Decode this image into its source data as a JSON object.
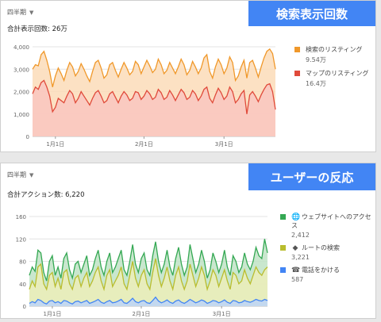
{
  "cards": [
    {
      "banner": "検索表示回数",
      "period_label": "四半期",
      "total_label": "合計表示回数: 26万",
      "icon": "chevron-down-icon"
    },
    {
      "banner": "ユーザーの反応",
      "period_label": "四半期",
      "total_label": "合計アクション数: 6,220",
      "icon": "chevron-down-icon"
    }
  ],
  "chart_data": [
    {
      "type": "area",
      "x_tick_labels": [
        "1月1日",
        "2月1日",
        "3月1日"
      ],
      "x_tick_positions": [
        8,
        39,
        67
      ],
      "ylim": [
        0,
        4000
      ],
      "y_ticks": [
        0,
        1000,
        2000,
        3000,
        4000
      ],
      "y_tick_labels": [
        "0",
        "1,000",
        "2,000",
        "3,000",
        "4,000"
      ],
      "grid": true,
      "legend_position": "right",
      "series": [
        {
          "name": "検索のリスティング",
          "total": "9.54万",
          "color": "#f0982a",
          "fill": "#fbdcb9",
          "values": [
            3000,
            3200,
            3150,
            3650,
            3800,
            3400,
            2900,
            2200,
            2700,
            3050,
            2800,
            2500,
            2950,
            3300,
            3100,
            2700,
            2900,
            3250,
            3000,
            2700,
            2450,
            2900,
            3300,
            3400,
            3050,
            2600,
            2750,
            3200,
            3300,
            2950,
            2650,
            3000,
            3300,
            3050,
            2750,
            2900,
            3350,
            3200,
            2800,
            3100,
            3400,
            3150,
            2850,
            3000,
            3450,
            3200,
            2800,
            2950,
            3300,
            3050,
            2800,
            3100,
            3450,
            3200,
            2750,
            2950,
            3350,
            3100,
            2800,
            3050,
            3500,
            3650,
            2900,
            2600,
            3100,
            3450,
            3200,
            2800,
            3050,
            3550,
            3300,
            2500,
            2700,
            3100,
            3400,
            2600,
            3300,
            3400,
            3050,
            2650,
            3100,
            3500,
            3800,
            3900,
            3700,
            3000
          ]
        },
        {
          "name": "マップのリスティング",
          "total": "16.4万",
          "color": "#e04a3a",
          "fill": "#f9c5bf",
          "values": [
            1900,
            2200,
            2100,
            2400,
            2500,
            2200,
            1800,
            1100,
            1300,
            1700,
            1600,
            1500,
            1800,
            2050,
            1900,
            1500,
            1700,
            2000,
            1800,
            1600,
            1400,
            1700,
            1950,
            2050,
            1800,
            1500,
            1600,
            1900,
            2000,
            1750,
            1500,
            1800,
            2000,
            1850,
            1600,
            1700,
            2000,
            1950,
            1650,
            1800,
            2050,
            1900,
            1650,
            1750,
            2100,
            1950,
            1650,
            1750,
            2050,
            1850,
            1600,
            1850,
            2100,
            1950,
            1650,
            1750,
            2050,
            1900,
            1600,
            1800,
            2100,
            2200,
            1700,
            1500,
            1850,
            2150,
            1950,
            1650,
            1800,
            2200,
            2000,
            1500,
            1650,
            1900,
            2050,
            1000,
            1850,
            2000,
            1800,
            1550,
            1850,
            2100,
            2300,
            2350,
            2000,
            1200
          ]
        }
      ]
    },
    {
      "type": "area",
      "x_tick_labels": [
        "1月1日",
        "2月1日",
        "3月1日"
      ],
      "x_tick_positions": [
        8,
        39,
        67
      ],
      "ylim": [
        0,
        160
      ],
      "y_ticks": [
        0,
        40,
        80,
        120,
        160
      ],
      "y_tick_labels": [
        "0",
        "40",
        "80",
        "120",
        "160"
      ],
      "grid": true,
      "legend_position": "right",
      "series": [
        {
          "name": "ウェブサイトへのアクセス",
          "total": "2,412",
          "color": "#34a853",
          "fill": "#bfe3c6",
          "icon": "globe-icon",
          "values": [
            55,
            70,
            62,
            100,
            95,
            60,
            45,
            80,
            90,
            55,
            70,
            50,
            85,
            95,
            65,
            50,
            75,
            80,
            60,
            75,
            90,
            55,
            65,
            85,
            100,
            70,
            55,
            80,
            95,
            60,
            70,
            85,
            100,
            65,
            55,
            80,
            110,
            75,
            60,
            85,
            95,
            65,
            55,
            90,
            115,
            80,
            60,
            75,
            100,
            70,
            55,
            85,
            105,
            75,
            55,
            70,
            110,
            85,
            60,
            75,
            100,
            80,
            50,
            65,
            95,
            80,
            60,
            75,
            100,
            70,
            55,
            90,
            80,
            60,
            70,
            95,
            75,
            65,
            80,
            105,
            90,
            85,
            120,
            95
          ]
        },
        {
          "name": "ルートの検索",
          "total": "3,221",
          "color": "#b9bd2e",
          "fill": "#ecedb8",
          "icon": "directions-icon",
          "values": [
            30,
            45,
            35,
            70,
            75,
            40,
            30,
            55,
            60,
            35,
            50,
            30,
            60,
            65,
            40,
            30,
            50,
            55,
            35,
            50,
            60,
            35,
            45,
            60,
            70,
            45,
            30,
            55,
            65,
            35,
            45,
            55,
            70,
            40,
            30,
            55,
            80,
            50,
            35,
            55,
            65,
            40,
            30,
            60,
            85,
            55,
            35,
            50,
            70,
            45,
            30,
            55,
            70,
            45,
            30,
            45,
            75,
            55,
            35,
            50,
            70,
            55,
            30,
            45,
            65,
            55,
            35,
            50,
            65,
            45,
            30,
            60,
            55,
            40,
            45,
            65,
            50,
            40,
            55,
            70,
            60,
            55,
            65,
            70
          ]
        },
        {
          "name": "電話をかける",
          "total": "587",
          "color": "#4285f4",
          "fill": "#bcd4f8",
          "icon": "phone-icon",
          "values": [
            5,
            8,
            6,
            12,
            10,
            6,
            4,
            9,
            10,
            6,
            8,
            5,
            10,
            9,
            6,
            4,
            8,
            9,
            6,
            8,
            10,
            5,
            7,
            9,
            12,
            7,
            5,
            8,
            10,
            6,
            7,
            9,
            12,
            6,
            5,
            9,
            14,
            8,
            6,
            9,
            10,
            6,
            5,
            10,
            16,
            9,
            6,
            8,
            11,
            7,
            5,
            9,
            11,
            7,
            5,
            8,
            12,
            9,
            6,
            8,
            11,
            9,
            5,
            7,
            10,
            9,
            6,
            8,
            11,
            7,
            5,
            10,
            9,
            6,
            7,
            10,
            8,
            7,
            9,
            12,
            10,
            9,
            12,
            10
          ]
        }
      ]
    }
  ]
}
